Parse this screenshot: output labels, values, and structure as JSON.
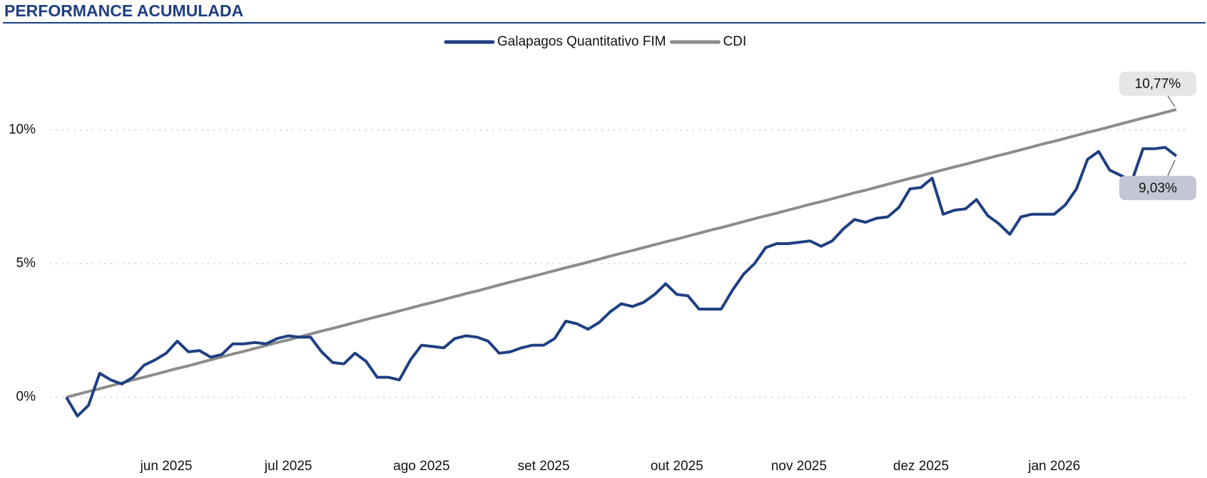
{
  "chart_data": {
    "type": "line",
    "title": "PERFORMANCE ACUMULADA",
    "categories": [
      null,
      null,
      null,
      null,
      null,
      null,
      null,
      null,
      null,
      "jun 2025",
      null,
      null,
      null,
      null,
      null,
      null,
      null,
      null,
      null,
      null,
      "jul 2025",
      null,
      null,
      null,
      null,
      null,
      null,
      null,
      null,
      null,
      null,
      null,
      "ago 2025",
      null,
      null,
      null,
      null,
      null,
      null,
      null,
      null,
      null,
      null,
      "set 2025",
      null,
      null,
      null,
      null,
      null,
      null,
      null,
      null,
      null,
      null,
      null,
      "out 2025",
      null,
      null,
      null,
      null,
      null,
      null,
      null,
      null,
      null,
      null,
      "nov 2025",
      null,
      null,
      null,
      null,
      null,
      null,
      null,
      null,
      null,
      null,
      "dez 2025",
      null,
      null,
      null,
      null,
      null,
      null,
      null,
      null,
      null,
      null,
      null,
      "jan 2026",
      null,
      null,
      null,
      null,
      null,
      null,
      null,
      null,
      null,
      null,
      null
    ],
    "series": [
      {
        "name": "Galapagos Quantitativo FIM",
        "color": "#1f3f82",
        "values": [
          0,
          -0.7,
          -0.3,
          0.9,
          0.65,
          0.5,
          0.75,
          1.2,
          1.4,
          1.65,
          2.1,
          1.7,
          1.75,
          1.5,
          1.6,
          2.0,
          2.0,
          2.05,
          2.0,
          2.2,
          2.3,
          2.25,
          2.25,
          1.7,
          1.3,
          1.25,
          1.65,
          1.35,
          0.75,
          0.75,
          0.65,
          1.4,
          1.95,
          1.9,
          1.85,
          2.2,
          2.3,
          2.25,
          2.1,
          1.65,
          1.7,
          1.85,
          1.95,
          1.95,
          2.2,
          2.85,
          2.75,
          2.55,
          2.8,
          3.2,
          3.5,
          3.4,
          3.55,
          3.85,
          4.25,
          3.85,
          3.8,
          3.3,
          3.3,
          3.3,
          4.0,
          4.6,
          5.0,
          5.6,
          5.75,
          5.75,
          5.8,
          5.85,
          5.65,
          5.85,
          6.3,
          6.65,
          6.55,
          6.7,
          6.75,
          7.1,
          7.8,
          7.85,
          8.2,
          6.85,
          7.0,
          7.05,
          7.4,
          6.8,
          6.5,
          6.1,
          6.75,
          6.85,
          6.85,
          6.85,
          7.2,
          7.8,
          8.9,
          9.2,
          8.5,
          8.3,
          8.1,
          9.3,
          9.3,
          9.35,
          9.03
        ],
        "value_labels": [
          null,
          null,
          null,
          null,
          null,
          null,
          null,
          null,
          null,
          null,
          null,
          null,
          null,
          null,
          null,
          null,
          null,
          null,
          null,
          null,
          null,
          null,
          null,
          null,
          null,
          null,
          null,
          null,
          null,
          null,
          null,
          null,
          null,
          null,
          null,
          null,
          null,
          null,
          null,
          null,
          null,
          null,
          null,
          null,
          null,
          null,
          null,
          null,
          null,
          null,
          null,
          null,
          null,
          null,
          null,
          null,
          null,
          null,
          null,
          null,
          null,
          null,
          null,
          null,
          null,
          null,
          null,
          null,
          null,
          null,
          null,
          null,
          null,
          null,
          null,
          null,
          null,
          null,
          null,
          null,
          null,
          null,
          null,
          null,
          null,
          null,
          null,
          null,
          null,
          null,
          null,
          null,
          null,
          null,
          null,
          null,
          null,
          null,
          null,
          null,
          "9,03%"
        ]
      },
      {
        "name": "CDI",
        "color": "#8c8c8c",
        "values": [
          0,
          0.11,
          0.22,
          0.32,
          0.43,
          0.54,
          0.65,
          0.75,
          0.86,
          0.97,
          1.08,
          1.18,
          1.29,
          1.4,
          1.51,
          1.62,
          1.72,
          1.83,
          1.94,
          2.05,
          2.15,
          2.26,
          2.37,
          2.48,
          2.58,
          2.69,
          2.8,
          2.91,
          3.02,
          3.12,
          3.23,
          3.34,
          3.45,
          3.55,
          3.66,
          3.77,
          3.88,
          3.98,
          4.09,
          4.2,
          4.31,
          4.42,
          4.52,
          4.63,
          4.74,
          4.85,
          4.95,
          5.06,
          5.17,
          5.28,
          5.39,
          5.49,
          5.6,
          5.71,
          5.82,
          5.92,
          6.03,
          6.14,
          6.25,
          6.35,
          6.46,
          6.57,
          6.68,
          6.79,
          6.89,
          7.0,
          7.11,
          7.22,
          7.32,
          7.43,
          7.54,
          7.65,
          7.75,
          7.86,
          7.97,
          8.08,
          8.19,
          8.29,
          8.4,
          8.51,
          8.62,
          8.72,
          8.83,
          8.94,
          9.05,
          9.15,
          9.26,
          9.37,
          9.48,
          9.58,
          9.69,
          9.8,
          9.91,
          10.01,
          10.12,
          10.23,
          10.34,
          10.45,
          10.55,
          10.66,
          10.77
        ],
        "value_labels": [
          null,
          null,
          null,
          null,
          null,
          null,
          null,
          null,
          null,
          null,
          null,
          null,
          null,
          null,
          null,
          null,
          null,
          null,
          null,
          null,
          null,
          null,
          null,
          null,
          null,
          null,
          null,
          null,
          null,
          null,
          null,
          null,
          null,
          null,
          null,
          null,
          null,
          null,
          null,
          null,
          null,
          null,
          null,
          null,
          null,
          null,
          null,
          null,
          null,
          null,
          null,
          null,
          null,
          null,
          null,
          null,
          null,
          null,
          null,
          null,
          null,
          null,
          null,
          null,
          null,
          null,
          null,
          null,
          null,
          null,
          null,
          null,
          null,
          null,
          null,
          null,
          null,
          null,
          null,
          null,
          null,
          null,
          null,
          null,
          null,
          null,
          null,
          null,
          null,
          null,
          null,
          null,
          null,
          null,
          null,
          null,
          null,
          null,
          null,
          null,
          "10,77%"
        ]
      }
    ],
    "ylim": [
      -1.5,
      12.2
    ],
    "yticks": [
      {
        "value": 0,
        "label": "0%"
      },
      {
        "value": 5,
        "label": "5%"
      },
      {
        "value": 10,
        "label": "10%"
      }
    ],
    "grid": true,
    "legend": "top"
  }
}
